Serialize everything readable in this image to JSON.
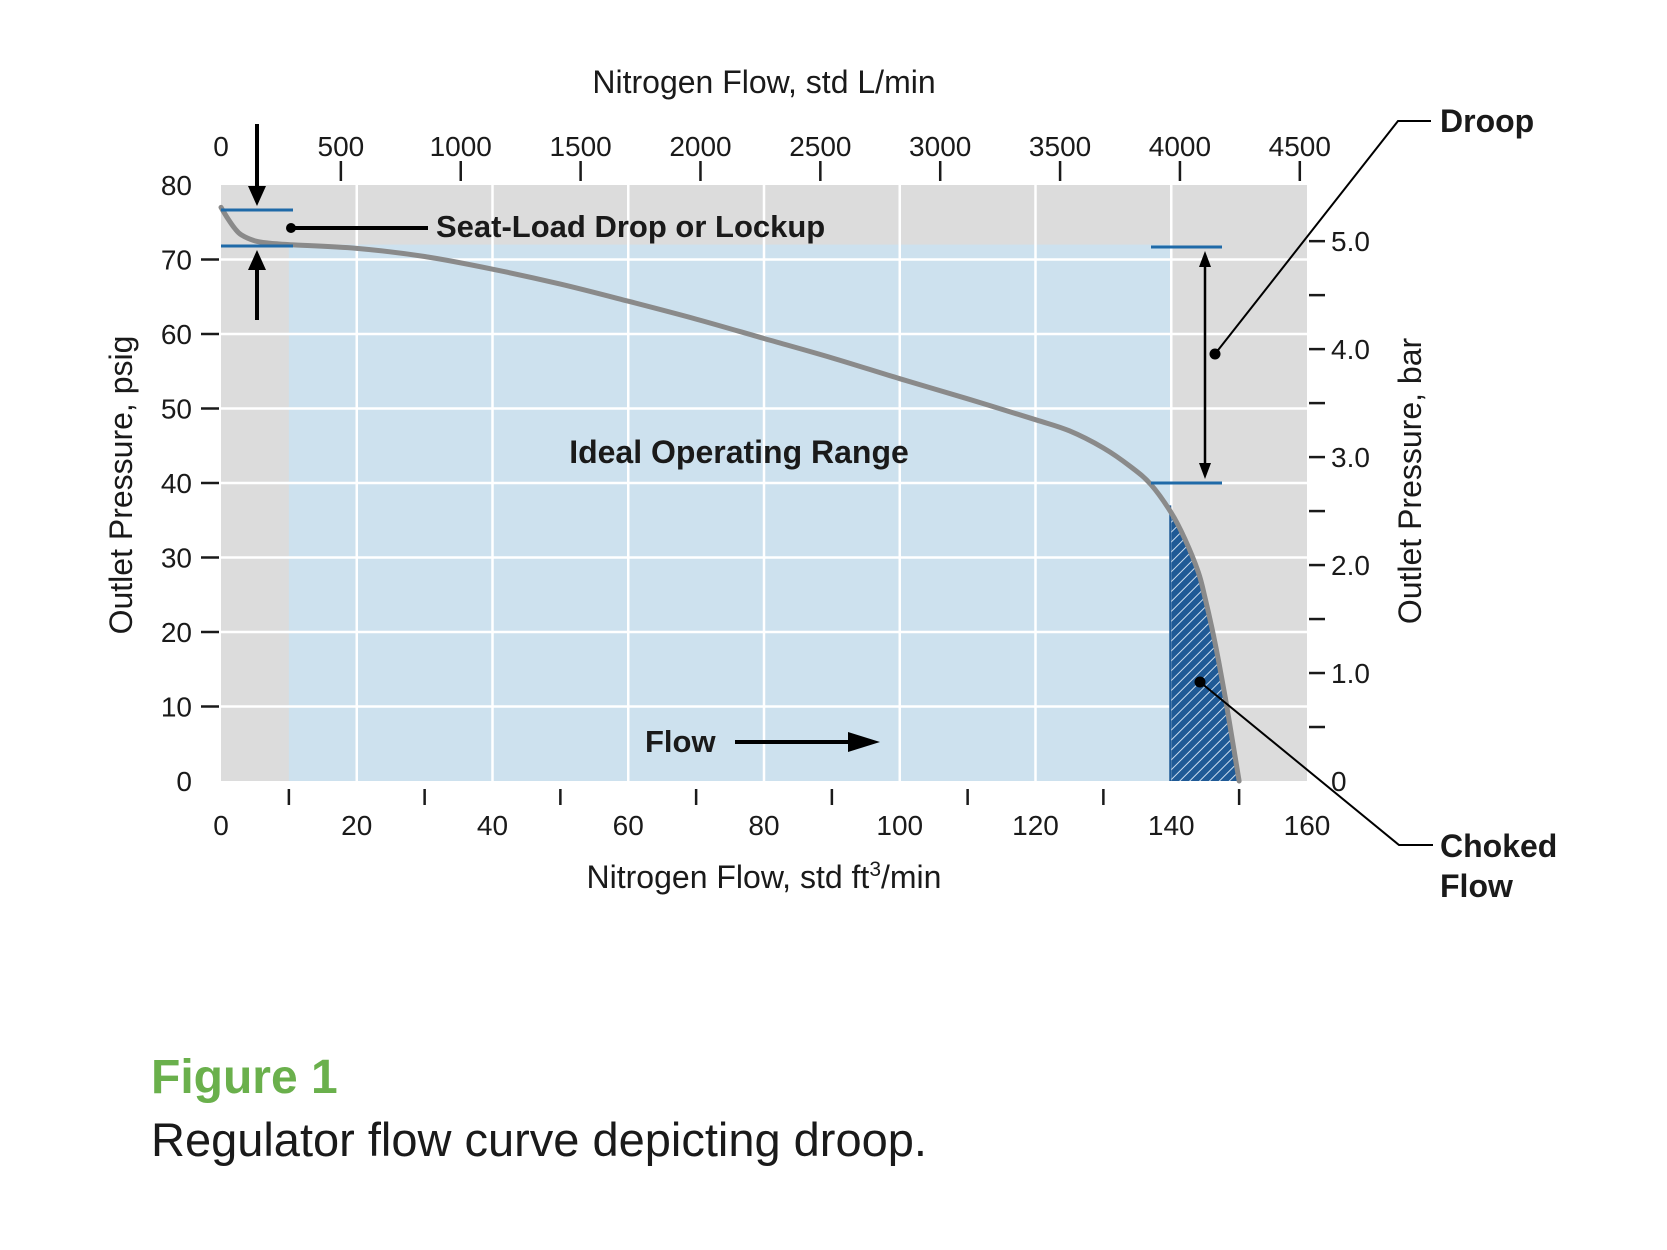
{
  "chart_data": {
    "type": "line",
    "bottom_axis": {
      "label_prefix": "Nitrogen Flow, std ft",
      "label_sup": "3",
      "label_suffix": "/min",
      "xlim": [
        0,
        160
      ],
      "ticks": [
        "0",
        "20",
        "40",
        "60",
        "80",
        "100",
        "120",
        "140",
        "160"
      ],
      "minor_ticks": [
        10,
        30,
        50,
        70,
        90,
        110,
        130,
        150
      ]
    },
    "top_axis": {
      "label": "Nitrogen Flow, std L/min",
      "lim": [
        0,
        4530
      ],
      "ticks": [
        "0",
        "500",
        "1000",
        "1500",
        "2000",
        "2500",
        "3000",
        "3500",
        "4000",
        "4500"
      ],
      "tick_values": [
        0,
        500,
        1000,
        1500,
        2000,
        2500,
        3000,
        3500,
        4000,
        4500
      ]
    },
    "left_axis": {
      "label": "Outlet Pressure, psig",
      "ylim": [
        0,
        80
      ],
      "ticks": [
        "0",
        "10",
        "20",
        "30",
        "40",
        "50",
        "60",
        "70",
        "80"
      ]
    },
    "right_axis": {
      "label": "Outlet Pressure, bar",
      "lim": [
        0,
        5.52
      ],
      "ticks": [
        "0",
        "1.0",
        "2.0",
        "3.0",
        "4.0",
        "5.0"
      ],
      "tick_values": [
        0,
        1,
        2,
        3,
        4,
        5
      ],
      "minor_values": [
        0.5,
        1.5,
        2.5,
        3.5,
        4.5
      ]
    },
    "grid": true,
    "series": [
      {
        "x": [
          0,
          1,
          2,
          3,
          5,
          7,
          10,
          20,
          30,
          40,
          50,
          60,
          70,
          80,
          90,
          100,
          110,
          120,
          125,
          130,
          134,
          137,
          140,
          142,
          144,
          145,
          146,
          147,
          148,
          149,
          150
        ],
        "y": [
          77,
          75.5,
          74.2,
          73.3,
          72.5,
          72.2,
          72,
          71.5,
          70.4,
          68.7,
          66.7,
          64.4,
          62,
          59.4,
          56.8,
          54,
          51.3,
          48.5,
          47,
          44.7,
          42.2,
          39.8,
          36,
          32.5,
          28,
          24.5,
          20.5,
          16,
          11,
          5.5,
          0
        ]
      }
    ],
    "regions": {
      "ideal_range": {
        "label": "Ideal Operating Range",
        "x_range": [
          10,
          140
        ]
      },
      "choked_flow": {
        "label": "Choked Flow",
        "x_from": 140
      }
    },
    "annotations": {
      "droop": "Droop",
      "seat_load": "Seat-Load Drop or Lockup",
      "flow": "Flow",
      "choked_line1": "Choked",
      "choked_line2": "Flow"
    }
  },
  "caption": {
    "figure_label": "Figure 1",
    "text": "Regulator flow curve depicting droop."
  }
}
